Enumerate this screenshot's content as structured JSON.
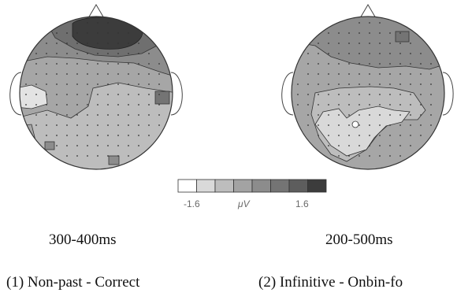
{
  "color_scale": {
    "min_label": "-1.6",
    "unit_label": "μV",
    "max_label": "1.6",
    "steps": [
      "#ffffff",
      "#d9d9d9",
      "#bdbdbd",
      "#a3a3a3",
      "#8c8c8c",
      "#747474",
      "#5d5d5d",
      "#3c3c3c"
    ]
  },
  "maps": [
    {
      "time_window": "300-400ms",
      "condition": "(1) Non-past - Correct"
    },
    {
      "time_window": "200-500ms",
      "condition": "(2) Infinitive - Onbin-fo"
    }
  ]
}
